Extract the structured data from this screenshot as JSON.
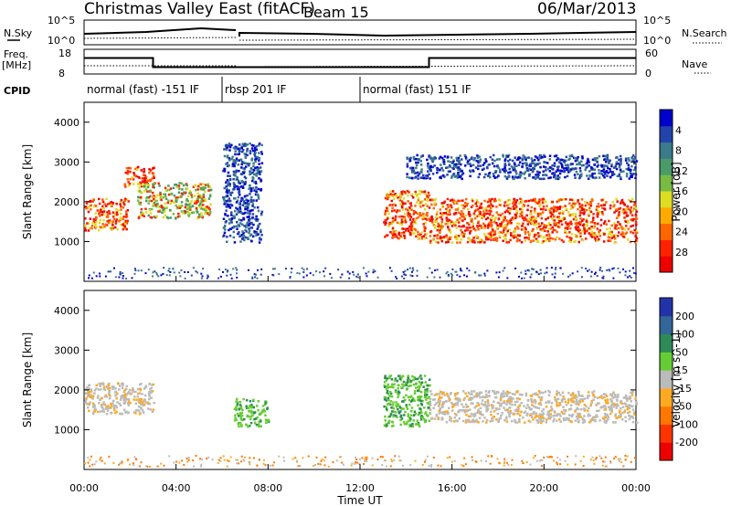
{
  "header": {
    "title": "Christmas Valley East (fitACF)",
    "beam": "Beam 15",
    "date": "06/Mar/2013"
  },
  "top_panels": {
    "nsky_label": "N.Sky",
    "nsearch_label": "N.Search",
    "nsky_ticks": [
      "10^5",
      "10^0"
    ],
    "nsearch_ticks": [
      "10^5",
      "10^0"
    ],
    "freq_label": "Freq.",
    "freq_unit": "[MHz]",
    "freq_ticks": [
      "18",
      "8"
    ],
    "nave_label": "Nave",
    "nave_ticks": [
      "60",
      "0"
    ],
    "cpid_label": "CPID",
    "cpid_segments": [
      {
        "label": "normal (fast) -151 IF",
        "start_h": 0,
        "end_h": 6.0
      },
      {
        "label": "rbsp 201 IF",
        "start_h": 6.0,
        "end_h": 12.0
      },
      {
        "label": "normal (fast) 151 IF",
        "start_h": 12.0,
        "end_h": 24.0
      }
    ],
    "freq_mhz_steps": [
      {
        "start_h": 0,
        "end_h": 3.0,
        "value": 14.5
      },
      {
        "start_h": 3.0,
        "end_h": 15.0,
        "value": 10.8
      },
      {
        "start_h": 15.0,
        "end_h": 24.0,
        "value": 14.5
      }
    ]
  },
  "x_axis": {
    "label": "Time UT",
    "ticks": [
      "00:00",
      "04:00",
      "08:00",
      "12:00",
      "16:00",
      "20:00",
      "00:00"
    ],
    "range_hours": [
      0,
      24
    ]
  },
  "chart_data": [
    {
      "type": "heatmap",
      "ylabel": "Slant Range [km]",
      "ylim": [
        0,
        4500
      ],
      "yticks": [
        1000,
        2000,
        3000,
        4000
      ],
      "colorbar": {
        "label": "Power [dB]",
        "ticks": [
          "4",
          "8",
          "12",
          "16",
          "20",
          "24",
          "28"
        ],
        "colors": [
          "#0000cc",
          "#2244aa",
          "#3a7a8a",
          "#4a9a6a",
          "#77bb44",
          "#dddd22",
          "#ffaa00",
          "#ff6600",
          "#ff2200",
          "#ee0000"
        ]
      },
      "regions": [
        {
          "t": [
            0.0,
            1.9
          ],
          "range_km": [
            1300,
            2100
          ],
          "level": "high"
        },
        {
          "t": [
            1.7,
            3.0
          ],
          "range_km": [
            2400,
            2900
          ],
          "level": "high"
        },
        {
          "t": [
            2.3,
            5.5
          ],
          "range_km": [
            1600,
            2500
          ],
          "level": "mid"
        },
        {
          "t": [
            6.0,
            7.7
          ],
          "range_km": [
            1000,
            3500
          ],
          "level": "low"
        },
        {
          "t": [
            13.0,
            15.0
          ],
          "range_km": [
            1100,
            2300
          ],
          "level": "high"
        },
        {
          "t": [
            15.0,
            24.0
          ],
          "range_km": [
            1000,
            2100
          ],
          "level": "high"
        },
        {
          "t": [
            14.0,
            24.0
          ],
          "range_km": [
            2600,
            3200
          ],
          "level": "low"
        }
      ]
    },
    {
      "type": "heatmap",
      "ylabel": "Slant Range [km]",
      "ylim": [
        0,
        4500
      ],
      "yticks": [
        1000,
        2000,
        3000,
        4000
      ],
      "colorbar": {
        "label": "Velocity [m s^-1]",
        "ticks": [
          "200",
          "100",
          "50",
          "15",
          "-15",
          "-50",
          "-100",
          "-200"
        ],
        "colors": [
          "#2233aa",
          "#336699",
          "#2e8b57",
          "#66cc33",
          "#bbbbbb",
          "#ffaa22",
          "#ff7700",
          "#ff3300",
          "#ee0000"
        ]
      },
      "regions": [
        {
          "t": [
            0.0,
            3.0
          ],
          "range_km": [
            1400,
            2200
          ],
          "level": "gray"
        },
        {
          "t": [
            6.5,
            8.0
          ],
          "range_km": [
            1100,
            1800
          ],
          "level": "green"
        },
        {
          "t": [
            13.0,
            15.0
          ],
          "range_km": [
            1100,
            2400
          ],
          "level": "green"
        },
        {
          "t": [
            15.0,
            24.0
          ],
          "range_km": [
            1200,
            2000
          ],
          "level": "gray"
        }
      ]
    }
  ]
}
